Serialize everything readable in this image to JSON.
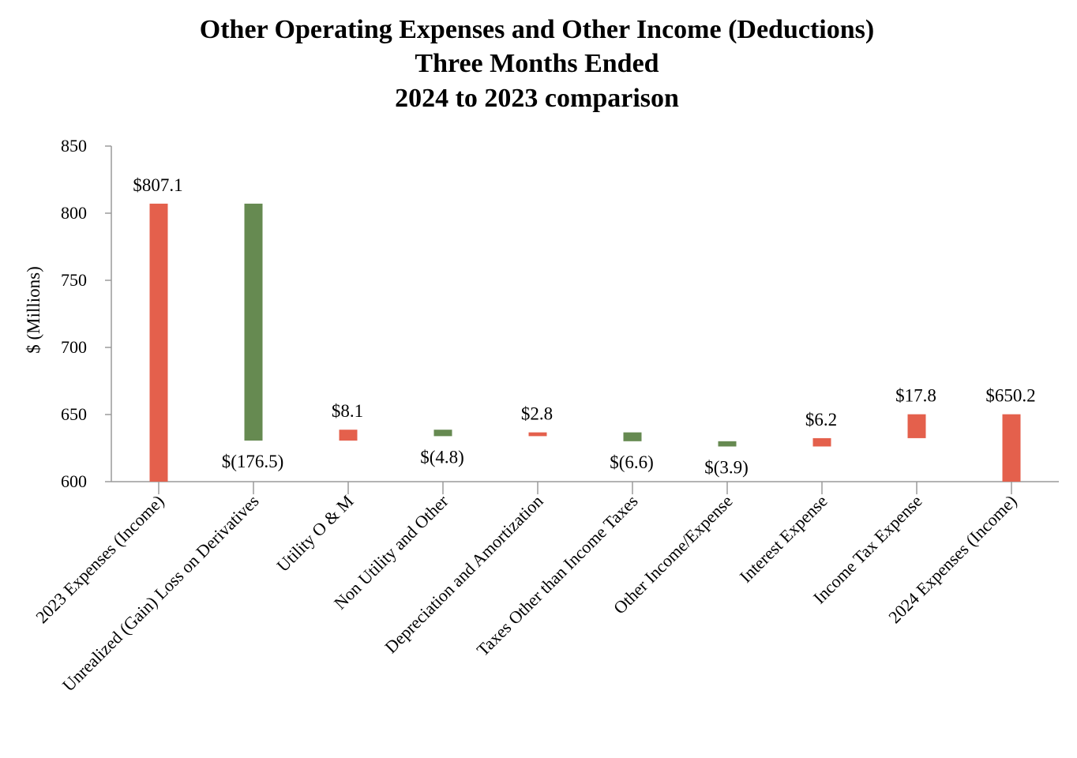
{
  "chart_data": {
    "type": "waterfall",
    "title": [
      "Other Operating Expenses and Other Income (Deductions)",
      "Three Months Ended",
      "2024 to 2023 comparison"
    ],
    "xlabel": "",
    "ylabel": "$ (Millions)",
    "ylim": [
      600,
      850
    ],
    "yticks": [
      600,
      650,
      700,
      750,
      800,
      850
    ],
    "grid": false,
    "colors": {
      "increase": "#E4604C",
      "decrease": "#668A51",
      "total": "#E4604C"
    },
    "bars": [
      {
        "category": "2023 Expenses (Income)",
        "value": 807.1,
        "kind": "total",
        "label": "$807.1",
        "label_pos": "above"
      },
      {
        "category": "Unrealized (Gain) Loss on Derivatives",
        "value": -176.5,
        "kind": "decrease",
        "label": "$(176.5)",
        "label_pos": "below"
      },
      {
        "category": "Utility O & M",
        "value": 8.1,
        "kind": "increase",
        "label": "$8.1",
        "label_pos": "above"
      },
      {
        "category": "Non Utility and Other",
        "value": -4.8,
        "kind": "decrease",
        "label": "$(4.8)",
        "label_pos": "below"
      },
      {
        "category": "Depreciation and Amortization",
        "value": 2.8,
        "kind": "increase",
        "label": "$2.8",
        "label_pos": "above"
      },
      {
        "category": "Taxes Other than Income Taxes",
        "value": -6.6,
        "kind": "decrease",
        "label": "$(6.6)",
        "label_pos": "below"
      },
      {
        "category": "Other Income/Expense",
        "value": -3.9,
        "kind": "decrease",
        "label": "$(3.9)",
        "label_pos": "below"
      },
      {
        "category": "Interest Expense",
        "value": 6.2,
        "kind": "increase",
        "label": "$6.2",
        "label_pos": "above"
      },
      {
        "category": "Income Tax Expense",
        "value": 17.8,
        "kind": "increase",
        "label": "$17.8",
        "label_pos": "above"
      },
      {
        "category": "2024 Expenses (Income)",
        "value": 650.2,
        "kind": "total",
        "label": "$650.2",
        "label_pos": "above"
      }
    ]
  }
}
